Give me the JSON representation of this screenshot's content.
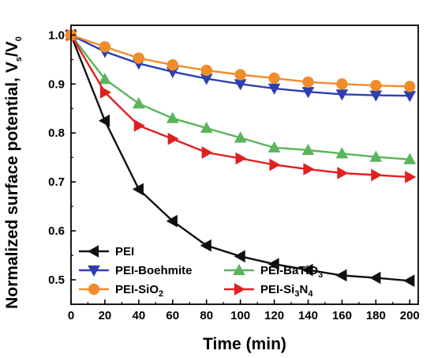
{
  "chart_data": {
    "type": "line",
    "xlabel": "Time (min)",
    "ylabel": {
      "prefix": "Normalized surface potential, V",
      "sub1": "s",
      "mid": "/V",
      "sub2": "0"
    },
    "xlim": [
      0,
      205
    ],
    "ylim": [
      0.45,
      1.02
    ],
    "xticks": [
      0,
      20,
      40,
      60,
      80,
      100,
      120,
      140,
      160,
      180,
      200
    ],
    "yticks": [
      0.5,
      0.6,
      0.7,
      0.8,
      0.9,
      1.0
    ],
    "xtick_labels": [
      "0",
      "20",
      "40",
      "60",
      "80",
      "100",
      "120",
      "140",
      "160",
      "180",
      "200"
    ],
    "ytick_labels": [
      "0.5",
      "0.6",
      "0.7",
      "0.8",
      "0.9",
      "1.0"
    ],
    "grid": false,
    "x": [
      0,
      20,
      40,
      60,
      80,
      100,
      120,
      140,
      160,
      180,
      200
    ],
    "series": [
      {
        "name": "PEI",
        "label_parts": [
          [
            "PEI",
            ""
          ]
        ],
        "color": "#111111",
        "marker": "triangle-left",
        "values": [
          1.0,
          0.825,
          0.685,
          0.62,
          0.57,
          0.548,
          0.532,
          0.52,
          0.509,
          0.504,
          0.498
        ]
      },
      {
        "name": "PEI-Boehmite",
        "label_parts": [
          [
            "PEI-Boehmite",
            ""
          ]
        ],
        "color": "#2e3fae",
        "marker": "triangle-down",
        "values": [
          1.0,
          0.966,
          0.942,
          0.925,
          0.911,
          0.9,
          0.891,
          0.884,
          0.879,
          0.877,
          0.876
        ]
      },
      {
        "name": "PEI-SiO2",
        "label_parts": [
          [
            "PEI-SiO",
            ""
          ],
          [
            "2",
            "sub"
          ]
        ],
        "color": "#f08c2a",
        "marker": "circle",
        "values": [
          1.0,
          0.976,
          0.953,
          0.939,
          0.928,
          0.919,
          0.912,
          0.904,
          0.9,
          0.897,
          0.895
        ]
      },
      {
        "name": "PEI-BaTiO3",
        "label_parts": [
          [
            "PEI-BaTiO",
            ""
          ],
          [
            "3",
            "sub"
          ]
        ],
        "color": "#5ab45a",
        "marker": "triangle-up",
        "values": [
          1.0,
          0.91,
          0.86,
          0.83,
          0.81,
          0.79,
          0.77,
          0.765,
          0.758,
          0.751,
          0.746
        ]
      },
      {
        "name": "PEI-Si3N4",
        "label_parts": [
          [
            "PEI-Si",
            ""
          ],
          [
            "3",
            "sub"
          ],
          [
            "N",
            ""
          ],
          [
            "4",
            "sub"
          ]
        ],
        "color": "#e02020",
        "marker": "triangle-right",
        "values": [
          1.0,
          0.883,
          0.815,
          0.788,
          0.76,
          0.748,
          0.735,
          0.726,
          0.718,
          0.714,
          0.71
        ]
      }
    ],
    "legend_placement": "bottom-left"
  }
}
